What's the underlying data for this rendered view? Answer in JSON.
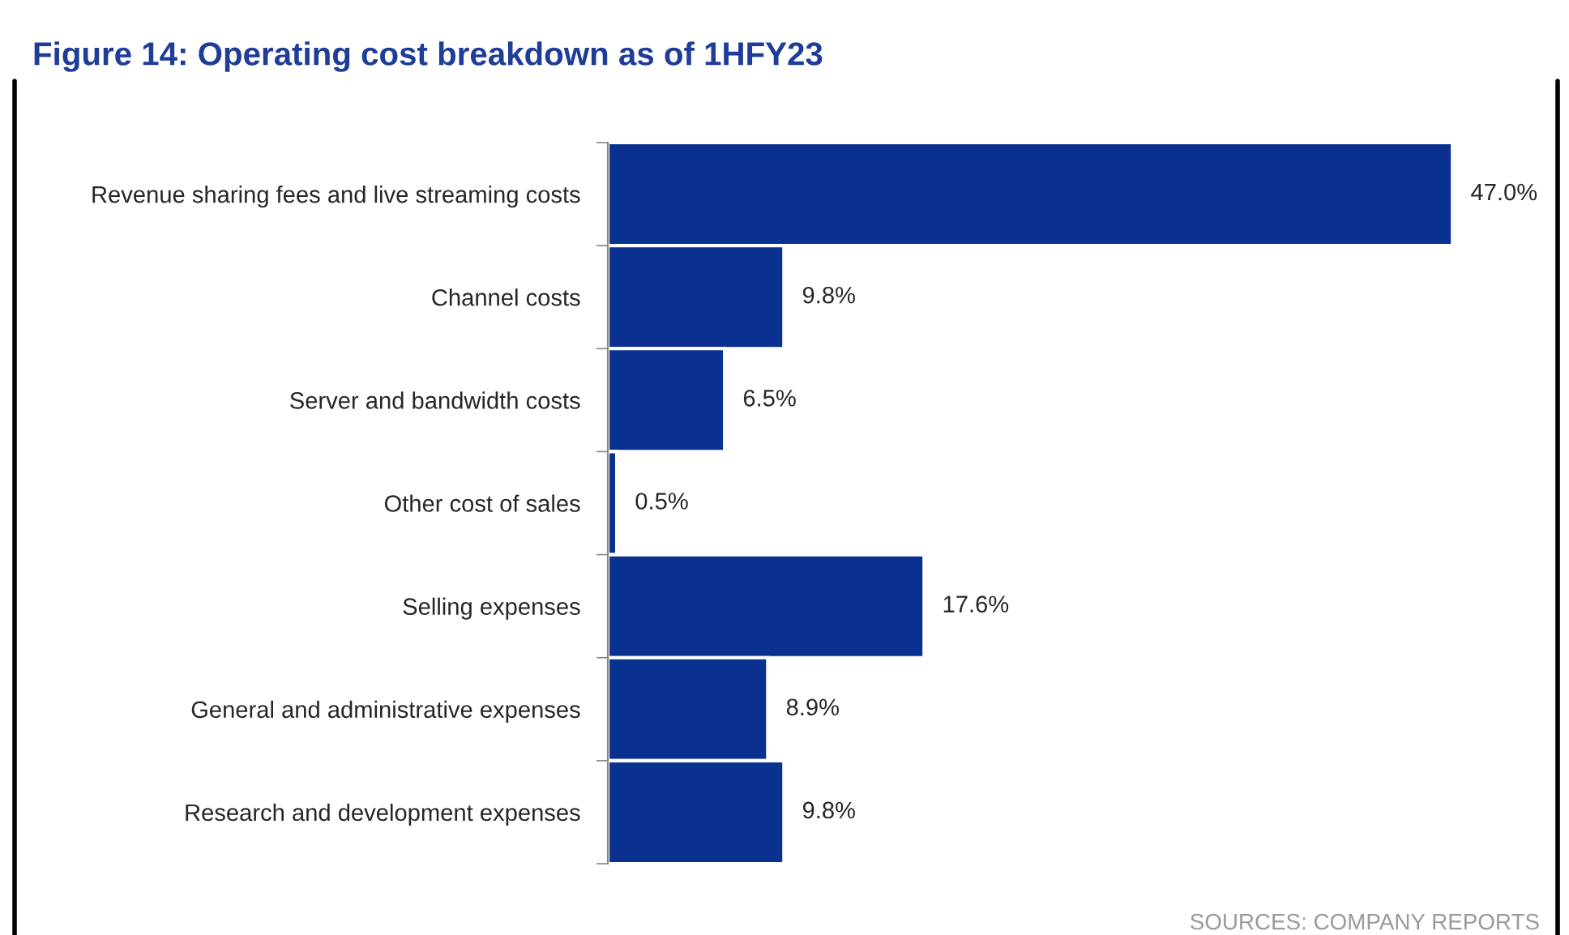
{
  "chart_data": {
    "type": "bar",
    "orientation": "horizontal",
    "title": "Figure 14: Operating cost breakdown as of 1HFY23",
    "categories": [
      "Revenue sharing fees and live streaming costs",
      "Channel costs",
      "Server and bandwidth costs",
      "Other cost of sales",
      "Selling expenses",
      "General and administrative expenses",
      "Research and development expenses"
    ],
    "values": [
      47.0,
      9.8,
      6.5,
      0.5,
      17.6,
      8.9,
      9.8
    ],
    "value_labels": [
      "47.0%",
      "9.8%",
      "6.5%",
      "0.5%",
      "17.6%",
      "8.9%",
      "9.8%"
    ],
    "color": "#0b3190",
    "annotations": [
      "SOURCES: COMPANY REPORTS"
    ],
    "grid": false,
    "legend": false
  }
}
